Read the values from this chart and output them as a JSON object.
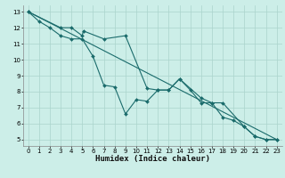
{
  "xlabel": "Humidex (Indice chaleur)",
  "bg_color": "#cceee8",
  "grid_color": "#aad4cc",
  "line_color": "#1a6b6b",
  "xlim": [
    -0.5,
    23.5
  ],
  "ylim": [
    4.6,
    13.4
  ],
  "xticks": [
    0,
    1,
    2,
    3,
    4,
    5,
    6,
    7,
    8,
    9,
    10,
    11,
    12,
    13,
    14,
    15,
    16,
    17,
    18,
    19,
    20,
    21,
    22,
    23
  ],
  "yticks": [
    5,
    6,
    7,
    8,
    9,
    10,
    11,
    12,
    13
  ],
  "line1_x": [
    0,
    1,
    2,
    3,
    4,
    5,
    6,
    7,
    8,
    9,
    10,
    11,
    12,
    13,
    14,
    15,
    16,
    17,
    18,
    19,
    20,
    21,
    22,
    23
  ],
  "line1_y": [
    13.0,
    12.4,
    12.0,
    11.5,
    11.3,
    11.3,
    10.2,
    8.4,
    8.3,
    6.6,
    7.5,
    7.4,
    8.1,
    8.1,
    8.8,
    8.1,
    7.3,
    7.3,
    6.4,
    6.2,
    5.8,
    5.2,
    5.0,
    5.0
  ],
  "line2_x": [
    0,
    3,
    4,
    5,
    5.1,
    7,
    9,
    11,
    12,
    13,
    14,
    16,
    17,
    18,
    20,
    21,
    22,
    23
  ],
  "line2_y": [
    13.0,
    12.0,
    12.0,
    11.5,
    11.8,
    11.3,
    11.5,
    8.2,
    8.1,
    8.1,
    8.8,
    7.6,
    7.3,
    7.3,
    5.8,
    5.2,
    5.0,
    5.0
  ],
  "line3_x": [
    0,
    23
  ],
  "line3_y": [
    13.0,
    5.0
  ],
  "marker_size": 2.0,
  "linewidth": 0.8,
  "tick_fontsize": 5.0,
  "xlabel_fontsize": 6.5
}
